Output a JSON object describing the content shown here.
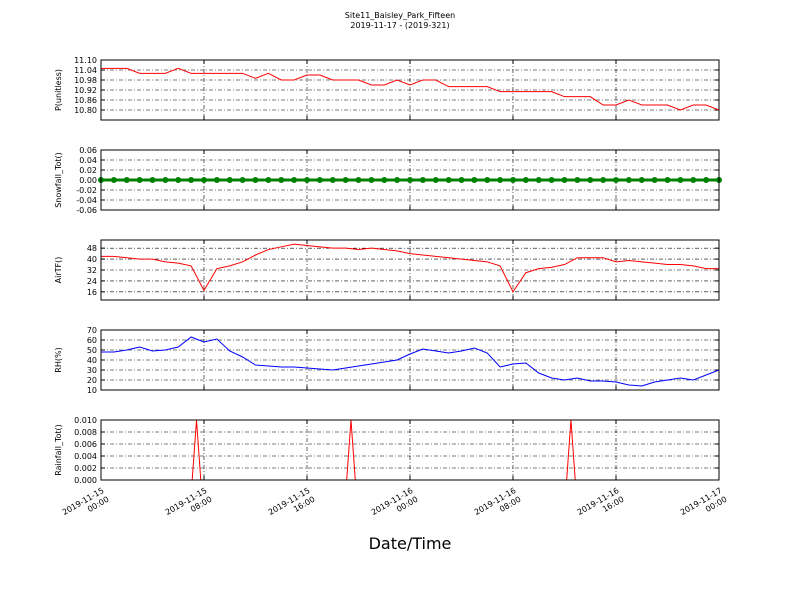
{
  "title": "Site11_Baisley_Park_Fifteen",
  "subtitle": "2019-11-17 - (2019-321)",
  "x_label": "Date/Time",
  "xlim": [
    "2019-11-15 00:00",
    "2019-11-17 00:00"
  ],
  "xticks": [
    "2019-11-15 00:00",
    "2019-11-15 08:00",
    "2019-11-15 16:00",
    "2019-11-16 00:00",
    "2019-11-16 08:00",
    "2019-11-16 16:00",
    "2019-11-17 00:00"
  ],
  "chart_data": [
    {
      "type": "line",
      "y_label": "P(unitless)",
      "color": "#ff0000",
      "grid": true,
      "ylim": [
        10.74,
        11.1
      ],
      "yticks": [
        {
          "value": 11.1,
          "label": "11.10"
        },
        11.04,
        10.98,
        10.92,
        10.86,
        {
          "value": 10.8,
          "label": "10.80"
        }
      ],
      "x": [
        "2019-11-15 00:00",
        "2019-11-15 01:00",
        "2019-11-15 02:00",
        "2019-11-15 03:00",
        "2019-11-15 04:00",
        "2019-11-15 05:00",
        "2019-11-15 06:00",
        "2019-11-15 07:00",
        "2019-11-15 08:00",
        "2019-11-15 09:00",
        "2019-11-15 10:00",
        "2019-11-15 11:00",
        "2019-11-15 12:00",
        "2019-11-15 13:00",
        "2019-11-15 14:00",
        "2019-11-15 15:00",
        "2019-11-15 16:00",
        "2019-11-15 17:00",
        "2019-11-15 18:00",
        "2019-11-15 19:00",
        "2019-11-15 20:00",
        "2019-11-15 21:00",
        "2019-11-15 22:00",
        "2019-11-15 23:00",
        "2019-11-16 00:00",
        "2019-11-16 01:00",
        "2019-11-16 02:00",
        "2019-11-16 03:00",
        "2019-11-16 04:00",
        "2019-11-16 05:00",
        "2019-11-16 06:00",
        "2019-11-16 07:00",
        "2019-11-16 08:00",
        "2019-11-16 09:00",
        "2019-11-16 10:00",
        "2019-11-16 11:00",
        "2019-11-16 12:00",
        "2019-11-16 13:00",
        "2019-11-16 14:00",
        "2019-11-16 15:00",
        "2019-11-16 16:00",
        "2019-11-16 17:00",
        "2019-11-16 18:00",
        "2019-11-16 19:00",
        "2019-11-16 20:00",
        "2019-11-16 21:00",
        "2019-11-16 22:00",
        "2019-11-16 23:00",
        "2019-11-17 00:00"
      ],
      "values": [
        11.05,
        11.05,
        11.05,
        11.02,
        11.02,
        11.02,
        11.05,
        11.02,
        11.02,
        11.02,
        11.02,
        11.02,
        10.99,
        11.02,
        10.98,
        10.98,
        11.01,
        11.01,
        10.98,
        10.98,
        10.98,
        10.95,
        10.95,
        10.98,
        10.95,
        10.98,
        10.98,
        10.94,
        10.94,
        10.94,
        10.94,
        10.91,
        10.91,
        10.91,
        10.91,
        10.91,
        10.88,
        10.88,
        10.88,
        10.83,
        10.83,
        10.86,
        10.83,
        10.83,
        10.83,
        10.8,
        10.83,
        10.83,
        10.8
      ]
    },
    {
      "type": "line",
      "y_label": "Snowfall_Tot()",
      "color": "#008000",
      "grid": true,
      "marker": true,
      "ylim": [
        -0.06,
        0.06
      ],
      "yticks": [
        0.06,
        0.04,
        0.02,
        {
          "value": 0,
          "label": "0.00"
        },
        -0.02,
        -0.04,
        -0.06
      ],
      "x": [
        "2019-11-15 00:00",
        "2019-11-15 01:00",
        "2019-11-15 02:00",
        "2019-11-15 03:00",
        "2019-11-15 04:00",
        "2019-11-15 05:00",
        "2019-11-15 06:00",
        "2019-11-15 07:00",
        "2019-11-15 08:00",
        "2019-11-15 09:00",
        "2019-11-15 10:00",
        "2019-11-15 11:00",
        "2019-11-15 12:00",
        "2019-11-15 13:00",
        "2019-11-15 14:00",
        "2019-11-15 15:00",
        "2019-11-15 16:00",
        "2019-11-15 17:00",
        "2019-11-15 18:00",
        "2019-11-15 19:00",
        "2019-11-15 20:00",
        "2019-11-15 21:00",
        "2019-11-15 22:00",
        "2019-11-15 23:00",
        "2019-11-16 00:00",
        "2019-11-16 01:00",
        "2019-11-16 02:00",
        "2019-11-16 03:00",
        "2019-11-16 04:00",
        "2019-11-16 05:00",
        "2019-11-16 06:00",
        "2019-11-16 07:00",
        "2019-11-16 08:00",
        "2019-11-16 09:00",
        "2019-11-16 10:00",
        "2019-11-16 11:00",
        "2019-11-16 12:00",
        "2019-11-16 13:00",
        "2019-11-16 14:00",
        "2019-11-16 15:00",
        "2019-11-16 16:00",
        "2019-11-16 17:00",
        "2019-11-16 18:00",
        "2019-11-16 19:00",
        "2019-11-16 20:00",
        "2019-11-16 21:00",
        "2019-11-16 22:00",
        "2019-11-16 23:00",
        "2019-11-17 00:00"
      ],
      "values": [
        0,
        0,
        0,
        0,
        0,
        0,
        0,
        0,
        0,
        0,
        0,
        0,
        0,
        0,
        0,
        0,
        0,
        0,
        0,
        0,
        0,
        0,
        0,
        0,
        0,
        0,
        0,
        0,
        0,
        0,
        0,
        0,
        0,
        0,
        0,
        0,
        0,
        0,
        0,
        0,
        0,
        0,
        0,
        0,
        0,
        0,
        0,
        0,
        0
      ]
    },
    {
      "type": "line",
      "y_label": "AirTF()",
      "color": "#ff0000",
      "grid": true,
      "ylim": [
        10,
        54
      ],
      "yticks": [
        16,
        24,
        32,
        40,
        48
      ],
      "x": [
        "2019-11-15 00:00",
        "2019-11-15 01:00",
        "2019-11-15 02:00",
        "2019-11-15 03:00",
        "2019-11-15 04:00",
        "2019-11-15 05:00",
        "2019-11-15 06:00",
        "2019-11-15 07:00",
        "2019-11-15 08:00",
        "2019-11-15 09:00",
        "2019-11-15 10:00",
        "2019-11-15 11:00",
        "2019-11-15 12:00",
        "2019-11-15 13:00",
        "2019-11-15 14:00",
        "2019-11-15 15:00",
        "2019-11-15 16:00",
        "2019-11-15 17:00",
        "2019-11-15 18:00",
        "2019-11-15 19:00",
        "2019-11-15 20:00",
        "2019-11-15 21:00",
        "2019-11-15 22:00",
        "2019-11-15 23:00",
        "2019-11-16 00:00",
        "2019-11-16 01:00",
        "2019-11-16 02:00",
        "2019-11-16 03:00",
        "2019-11-16 04:00",
        "2019-11-16 05:00",
        "2019-11-16 06:00",
        "2019-11-16 07:00",
        "2019-11-16 08:00",
        "2019-11-16 09:00",
        "2019-11-16 10:00",
        "2019-11-16 11:00",
        "2019-11-16 12:00",
        "2019-11-16 13:00",
        "2019-11-16 14:00",
        "2019-11-16 15:00",
        "2019-11-16 16:00",
        "2019-11-16 17:00",
        "2019-11-16 18:00",
        "2019-11-16 19:00",
        "2019-11-16 20:00",
        "2019-11-16 21:00",
        "2019-11-16 22:00",
        "2019-11-16 23:00",
        "2019-11-17 00:00"
      ],
      "values": [
        42,
        42,
        41,
        40,
        40,
        38,
        37,
        35,
        17,
        33,
        35,
        38,
        43,
        47,
        49,
        51,
        50,
        49,
        48,
        48,
        47,
        48,
        47,
        46,
        44,
        43,
        42,
        41,
        40,
        39,
        38,
        35,
        16,
        30,
        33,
        34,
        36,
        41,
        41,
        41,
        38,
        39,
        38,
        37,
        36,
        36,
        35,
        33,
        33
      ]
    },
    {
      "type": "line",
      "y_label": "RH(%)",
      "color": "#0000ff",
      "grid": true,
      "ylim": [
        10,
        70
      ],
      "yticks": [
        10,
        20,
        30,
        40,
        50,
        60,
        70
      ],
      "x": [
        "2019-11-15 00:00",
        "2019-11-15 01:00",
        "2019-11-15 02:00",
        "2019-11-15 03:00",
        "2019-11-15 04:00",
        "2019-11-15 05:00",
        "2019-11-15 06:00",
        "2019-11-15 07:00",
        "2019-11-15 08:00",
        "2019-11-15 09:00",
        "2019-11-15 10:00",
        "2019-11-15 11:00",
        "2019-11-15 12:00",
        "2019-11-15 13:00",
        "2019-11-15 14:00",
        "2019-11-15 15:00",
        "2019-11-15 16:00",
        "2019-11-15 17:00",
        "2019-11-15 18:00",
        "2019-11-15 19:00",
        "2019-11-15 20:00",
        "2019-11-15 21:00",
        "2019-11-15 22:00",
        "2019-11-15 23:00",
        "2019-11-16 00:00",
        "2019-11-16 01:00",
        "2019-11-16 02:00",
        "2019-11-16 03:00",
        "2019-11-16 04:00",
        "2019-11-16 05:00",
        "2019-11-16 06:00",
        "2019-11-16 07:00",
        "2019-11-16 08:00",
        "2019-11-16 09:00",
        "2019-11-16 10:00",
        "2019-11-16 11:00",
        "2019-11-16 12:00",
        "2019-11-16 13:00",
        "2019-11-16 14:00",
        "2019-11-16 15:00",
        "2019-11-16 16:00",
        "2019-11-16 17:00",
        "2019-11-16 18:00",
        "2019-11-16 19:00",
        "2019-11-16 20:00",
        "2019-11-16 21:00",
        "2019-11-16 22:00",
        "2019-11-16 23:00",
        "2019-11-17 00:00"
      ],
      "values": [
        48,
        48,
        50,
        53,
        49,
        50,
        53,
        63,
        58,
        61,
        49,
        43,
        35,
        34,
        33,
        33,
        32,
        31,
        30,
        32,
        34,
        36,
        38,
        40,
        46,
        51,
        49,
        47,
        49,
        52,
        47,
        33,
        36,
        37,
        27,
        22,
        20,
        22,
        19,
        19,
        18,
        15,
        14,
        18,
        20,
        22,
        20,
        25,
        30
      ]
    },
    {
      "type": "line",
      "y_label": "Rainfall_Tot()",
      "color": "#ff0000",
      "grid": true,
      "ylim": [
        0,
        0.01
      ],
      "yticks": [
        {
          "value": 0,
          "label": "0.000"
        },
        0.002,
        0.004,
        0.006,
        0.008,
        {
          "value": 0.01,
          "label": "0.010"
        }
      ],
      "x": [
        "2019-11-15 00:00",
        "2019-11-15 07:05",
        "2019-11-15 07:25",
        "2019-11-15 07:45",
        "2019-11-15 19:05",
        "2019-11-15 19:25",
        "2019-11-15 19:45",
        "2019-11-16 12:10",
        "2019-11-16 12:30",
        "2019-11-16 12:50",
        "2019-11-17 00:00"
      ],
      "values": [
        0,
        0,
        0.01,
        0,
        0,
        0.01,
        0,
        0,
        0.01,
        0,
        0
      ]
    }
  ]
}
